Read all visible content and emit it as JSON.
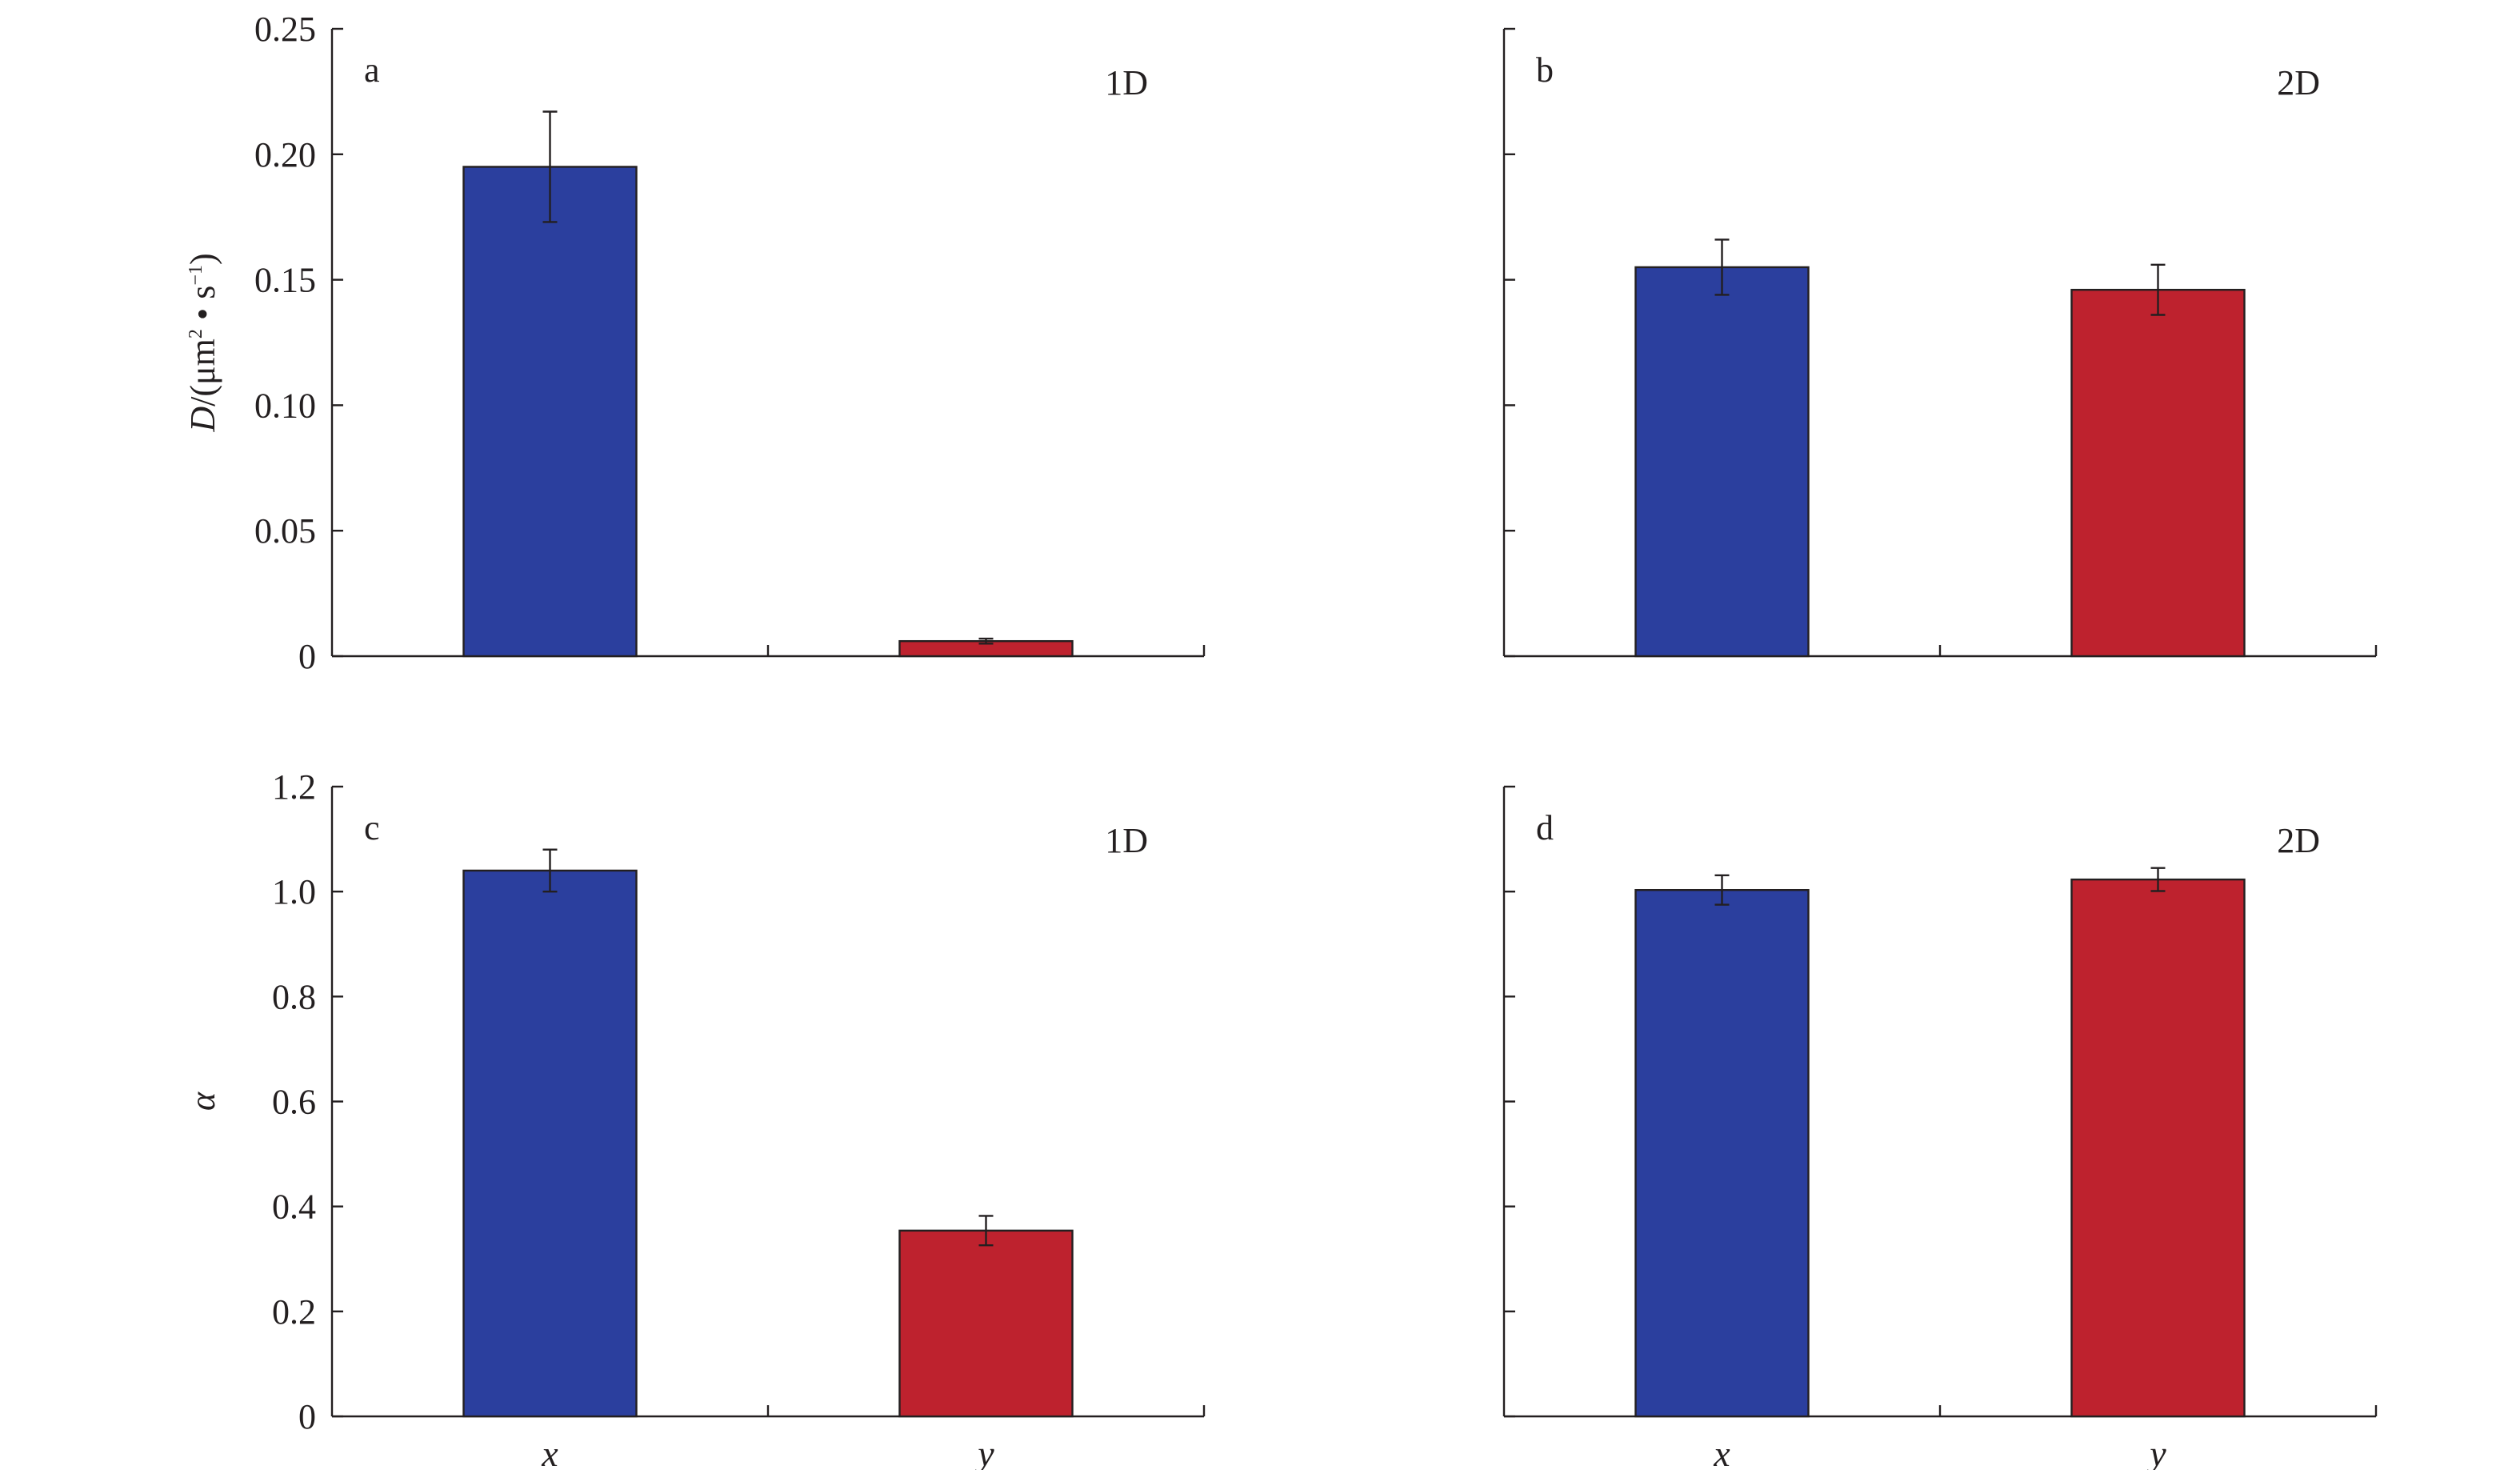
{
  "colors": {
    "x": "#2b3f9e",
    "y": "#be222e",
    "ink": "#231f20"
  },
  "chart_data": [
    {
      "type": "bar",
      "panel": "a",
      "tag": "1D",
      "categories": [
        "x",
        "y"
      ],
      "values": [
        0.195,
        0.006
      ],
      "errors": [
        0.022,
        0.001
      ],
      "ylabel": {
        "italic": "D",
        "rest": "/(μm",
        "sup1": "2",
        "mid": " • s",
        "sup2": "−1",
        "end": ")"
      },
      "ylim": [
        0,
        0.25
      ],
      "yticks": [
        "0",
        "0.05",
        "0.10",
        "0.15",
        "0.20",
        "0.25"
      ],
      "show_tick_labels": true,
      "show_category_labels": false
    },
    {
      "type": "bar",
      "panel": "b",
      "tag": "2D",
      "categories": [
        "x",
        "y"
      ],
      "values": [
        0.155,
        0.146
      ],
      "errors": [
        0.011,
        0.01
      ],
      "ylim": [
        0,
        0.25
      ],
      "yticks": [
        "0",
        "0.05",
        "0.10",
        "0.15",
        "0.20",
        "0.25"
      ],
      "show_tick_labels": false,
      "show_category_labels": false
    },
    {
      "type": "bar",
      "panel": "c",
      "tag": "1D",
      "categories": [
        "x",
        "y"
      ],
      "values": [
        1.04,
        0.354
      ],
      "errors": [
        0.04,
        0.028
      ],
      "ylabel": {
        "italic": "α"
      },
      "ylim": [
        0,
        1.2
      ],
      "yticks": [
        "0",
        "0.2",
        "0.4",
        "0.6",
        "0.8",
        "1.0",
        "1.2"
      ],
      "show_tick_labels": true,
      "show_category_labels": true
    },
    {
      "type": "bar",
      "panel": "d",
      "tag": "2D",
      "categories": [
        "x",
        "y"
      ],
      "values": [
        1.003,
        1.023
      ],
      "errors": [
        0.028,
        0.022
      ],
      "ylim": [
        0,
        1.2
      ],
      "yticks": [
        "0",
        "0.2",
        "0.4",
        "0.6",
        "0.8",
        "1.0",
        "1.2"
      ],
      "show_tick_labels": false,
      "show_category_labels": true
    }
  ]
}
